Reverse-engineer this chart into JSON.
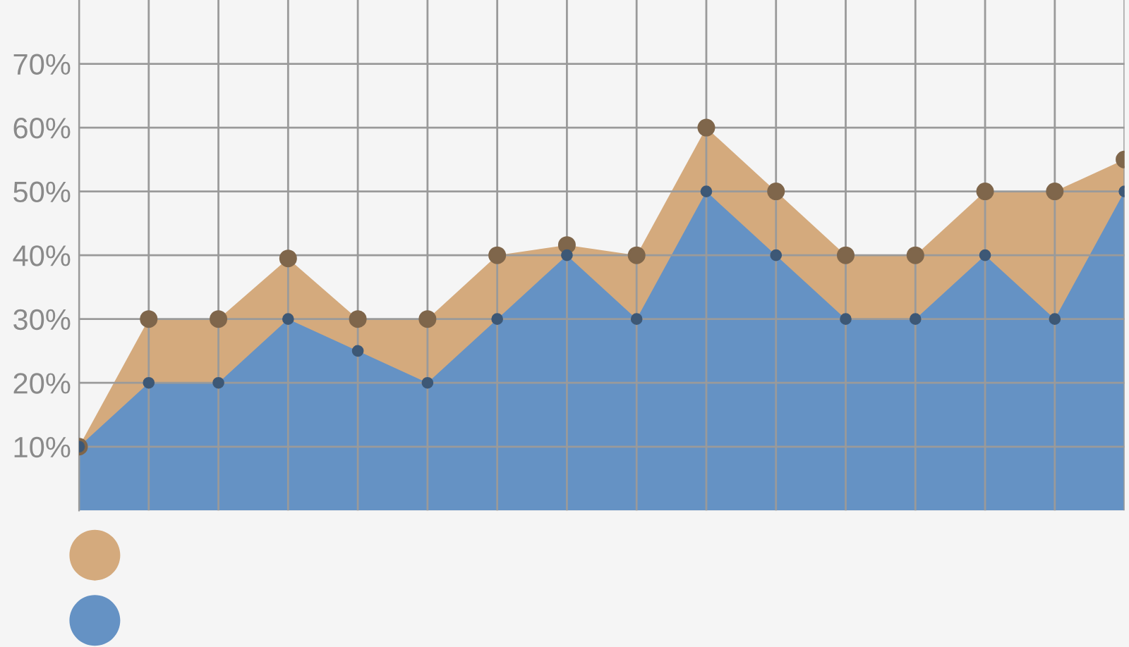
{
  "chart_data": {
    "type": "area",
    "categories": [
      null,
      null,
      null,
      null,
      null,
      null,
      null,
      null,
      null,
      null,
      null,
      null,
      null,
      null,
      null,
      null
    ],
    "series": [
      {
        "color": "#d4aa7d",
        "values": [
          10,
          30,
          30,
          39.5,
          30,
          30,
          40,
          41.6,
          40,
          60,
          50,
          40,
          40,
          50,
          50,
          55
        ]
      },
      {
        "color": "#6592c4",
        "values": [
          10,
          20,
          20,
          30,
          25,
          20,
          30,
          40,
          30,
          50,
          40,
          30,
          30,
          40,
          30,
          50
        ]
      }
    ],
    "ylim": [
      0,
      80
    ],
    "yticks": [
      {
        "value": 10,
        "label": "10%"
      },
      {
        "value": 20,
        "label": "20%"
      },
      {
        "value": 30,
        "label": "30%"
      },
      {
        "value": 40,
        "label": "40%"
      },
      {
        "value": 50,
        "label": "50%"
      },
      {
        "value": 60,
        "label": "60%"
      },
      {
        "value": 70,
        "label": "70%"
      }
    ],
    "grid": true,
    "marker": "circle"
  }
}
